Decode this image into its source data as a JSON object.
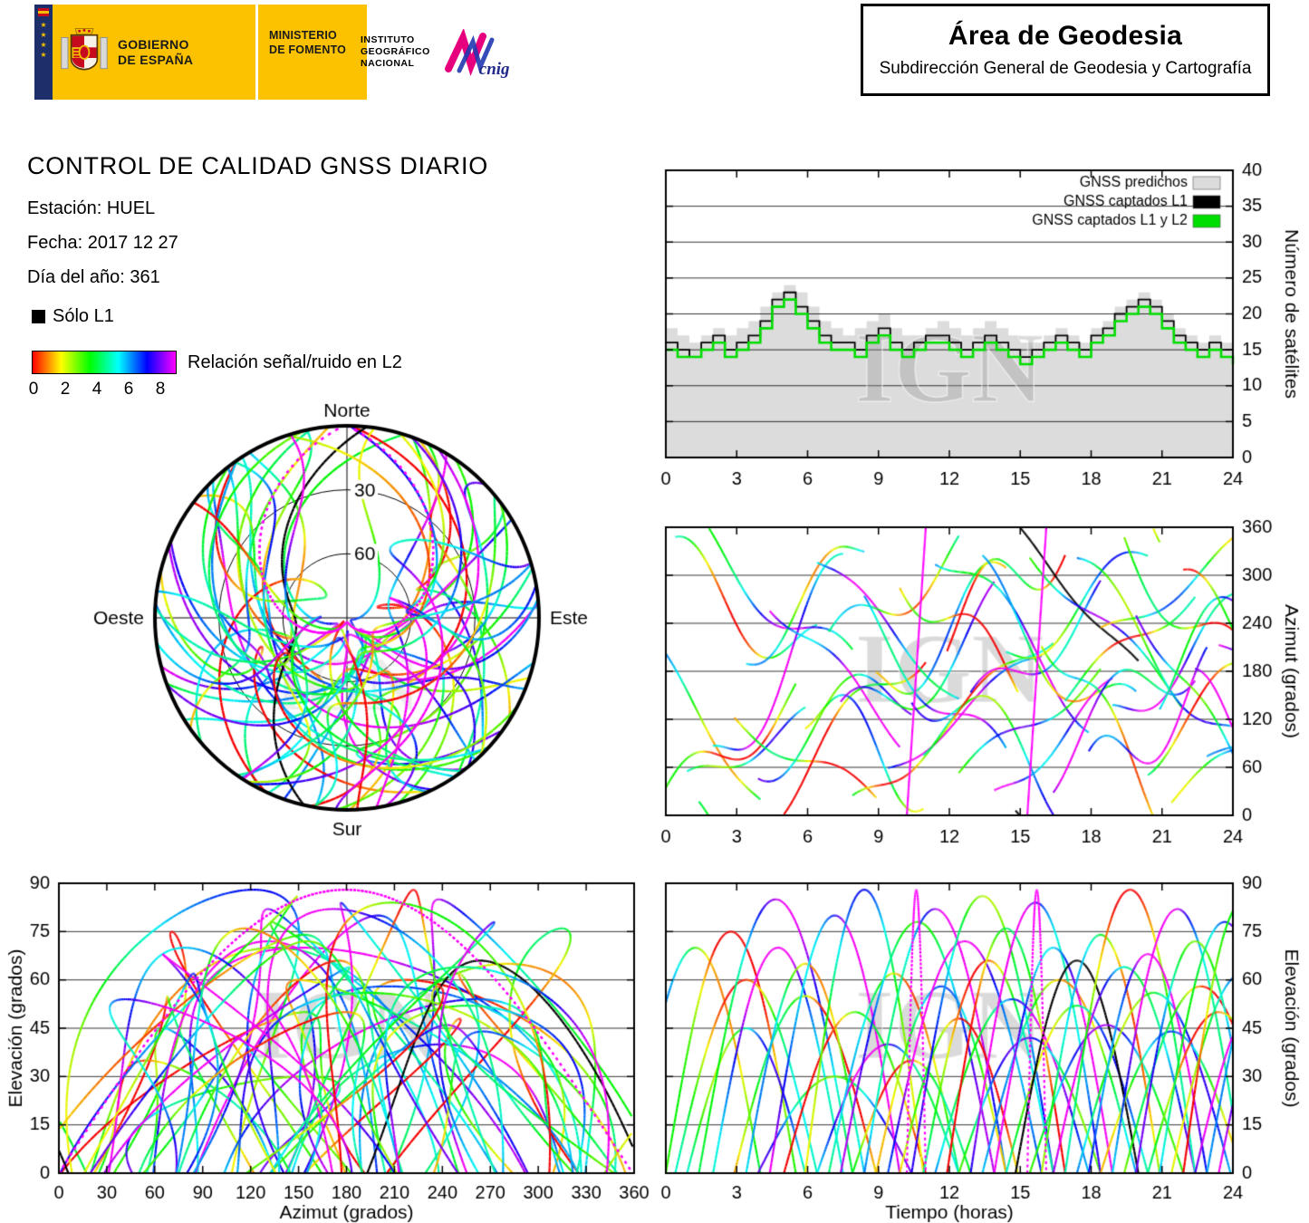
{
  "header": {
    "gov_line1": "GOBIERNO",
    "gov_line2": "DE ESPAÑA",
    "ministry_line1": "MINISTERIO",
    "ministry_line2": "DE FOMENTO",
    "ign_lines": [
      "INSTITUTO",
      "GEOGRÁFICO",
      "NACIONAL"
    ],
    "cnig_label": "cnig",
    "area_title": "Área de Geodesia",
    "area_subtitle": "Subdirección General de Geodesia y Cartografía"
  },
  "info": {
    "title": "CONTROL DE CALIDAD GNSS DIARIO",
    "station_label": "Estación: HUEL",
    "date_label": "Fecha: 2017 12 27",
    "doy_label": "Día del año: 361"
  },
  "legend": {
    "solo_l1": "Sólo L1",
    "colorbar_label": "Relación señal/ruido en L2",
    "colorbar_ticks": [
      "0",
      "2",
      "4",
      "6",
      "8"
    ],
    "colorbar_range": [
      0,
      9
    ]
  },
  "skyplot": {
    "north": "Norte",
    "south": "Sur",
    "east": "Este",
    "west": "Oeste",
    "ring30": "30",
    "ring60": "60"
  },
  "watermark": "IGN",
  "colors": {
    "header_yellow": "#fcc200",
    "navy": "#1c2f6b",
    "predicted_gray": "#dcdcdc",
    "captured_l1": "#000000",
    "captured_l1l2": "#00dd00",
    "magenta_dotted": "#ff00ff"
  },
  "chart_data": [
    {
      "id": "sat_count",
      "type": "area",
      "title": "",
      "xlabel": "",
      "ylabel": "Número de satélites",
      "xlim": [
        0,
        24
      ],
      "ylim": [
        0,
        40
      ],
      "x_ticks": [
        0,
        3,
        6,
        9,
        12,
        15,
        18,
        21,
        24
      ],
      "y_ticks": [
        0,
        5,
        10,
        15,
        20,
        25,
        30,
        35,
        40
      ],
      "grid": "horizontal",
      "legend_position": "top-right",
      "x_step": 0.5,
      "legend": [
        {
          "label": "GNSS predichos",
          "color": "#dcdcdc"
        },
        {
          "label": "GNSS captados L1",
          "color": "#000000"
        },
        {
          "label": "GNSS captados L1 y L2",
          "color": "#00dd00"
        }
      ],
      "series": [
        {
          "name": "GNSS predichos",
          "values": [
            18,
            17,
            16,
            17,
            18,
            17,
            18,
            19,
            21,
            23,
            24,
            23,
            21,
            19,
            18,
            17,
            18,
            19,
            20,
            18,
            17,
            17,
            18,
            19,
            18,
            17,
            18,
            19,
            18,
            17,
            16,
            16,
            17,
            18,
            17,
            16,
            18,
            19,
            21,
            22,
            23,
            22,
            20,
            18,
            17,
            16,
            17,
            16,
            16
          ]
        },
        {
          "name": "GNSS captados L1",
          "values": [
            16,
            15,
            14,
            16,
            17,
            15,
            16,
            17,
            19,
            22,
            23,
            21,
            19,
            17,
            16,
            16,
            15,
            17,
            18,
            16,
            15,
            16,
            17,
            17,
            16,
            15,
            16,
            17,
            16,
            15,
            14,
            15,
            16,
            17,
            16,
            15,
            17,
            18,
            20,
            21,
            22,
            21,
            19,
            17,
            16,
            15,
            16,
            15,
            14
          ]
        },
        {
          "name": "GNSS captados L1 y L2",
          "values": [
            15,
            14,
            14,
            15,
            16,
            14,
            15,
            16,
            18,
            21,
            22,
            20,
            18,
            16,
            15,
            15,
            14,
            16,
            17,
            15,
            14,
            15,
            16,
            16,
            15,
            14,
            15,
            16,
            15,
            14,
            13,
            14,
            15,
            16,
            15,
            14,
            16,
            17,
            19,
            20,
            21,
            20,
            18,
            16,
            15,
            14,
            15,
            14,
            13
          ]
        }
      ]
    },
    {
      "id": "azimut_time",
      "type": "line",
      "xlabel": "",
      "ylabel": "Azimut (grados)",
      "xlim": [
        0,
        24
      ],
      "ylim": [
        0,
        360
      ],
      "x_ticks": [
        0,
        3,
        6,
        9,
        12,
        15,
        18,
        21,
        24
      ],
      "y_ticks": [
        0,
        60,
        120,
        180,
        240,
        300,
        360
      ],
      "grid": "horizontal",
      "series_ref": "satellites",
      "color_encoding": "L2 signal/noise ratio (rainbow), black = L1 only"
    },
    {
      "id": "elev_azimut",
      "type": "line",
      "xlabel": "Azimut (grados)",
      "ylabel": "Elevación (grados)",
      "xlim": [
        0,
        360
      ],
      "ylim": [
        0,
        90
      ],
      "x_ticks": [
        0,
        30,
        60,
        90,
        120,
        150,
        180,
        210,
        240,
        270,
        300,
        330,
        360
      ],
      "y_ticks": [
        0,
        15,
        30,
        45,
        60,
        75,
        90
      ],
      "grid": "horizontal",
      "series_ref": "satellites",
      "color_encoding": "L2 signal/noise ratio (rainbow), black = L1 only"
    },
    {
      "id": "elev_time",
      "type": "line",
      "xlabel": "Tiempo (horas)",
      "ylabel": "Elevación (grados)",
      "xlim": [
        0,
        24
      ],
      "ylim": [
        0,
        90
      ],
      "x_ticks": [
        0,
        3,
        6,
        9,
        12,
        15,
        18,
        21,
        24
      ],
      "y_ticks": [
        0,
        15,
        30,
        45,
        60,
        75,
        90
      ],
      "grid": "horizontal",
      "series_ref": "satellites",
      "color_encoding": "L2 signal/noise ratio (rainbow), black = L1 only"
    },
    {
      "id": "skyplot",
      "type": "line",
      "projection": "polar",
      "elevation_rings": [
        30,
        60
      ],
      "cardinal_labels": [
        "Norte",
        "Este",
        "Sur",
        "Oeste"
      ],
      "series_ref": "satellites",
      "color_encoding": "L2 signal/noise ratio (rainbow), black = L1 only"
    }
  ],
  "satellites": [
    {
      "t0": -1.5,
      "dur": 5.5,
      "az0": 250,
      "az1": 20,
      "el": 70,
      "snr": 0.4,
      "ph": 0.0
    },
    {
      "t0": 0.0,
      "dur": 5.5,
      "az0": 20,
      "az1": 150,
      "el": 75,
      "snr": 0.1,
      "ph": 0.5
    },
    {
      "t0": 0.4,
      "dur": 6.0,
      "az0": 310,
      "az1": 200,
      "el": 60,
      "snr": 0.3,
      "ph": 1.0
    },
    {
      "t0": 0.9,
      "dur": 5.0,
      "az0": 40,
      "az1": 120,
      "el": 45,
      "snr": 0.55,
      "ph": 1.5
    },
    {
      "t0": 1.4,
      "dur": 6.5,
      "az0": 350,
      "az1": 180,
      "el": 85,
      "snr": 0.7,
      "ph": 2.0
    },
    {
      "t0": 2.0,
      "dur": 5.5,
      "az0": 60,
      "az1": 300,
      "el": 70,
      "snr": 0.85,
      "ph": 2.5
    },
    {
      "t0": 2.9,
      "dur": 6.0,
      "az0": 120,
      "az1": 20,
      "el": 55,
      "snr": 0.2,
      "ph": 3.0
    },
    {
      "t0": 3.4,
      "dur": 5.0,
      "az0": 200,
      "az1": 340,
      "el": 65,
      "snr": 0.4,
      "ph": 3.5
    },
    {
      "t0": 3.9,
      "dur": 6.5,
      "az0": 80,
      "az1": 160,
      "el": 30,
      "snr": 0.6,
      "ph": 4.0
    },
    {
      "t0": 4.4,
      "dur": 5.5,
      "az0": 270,
      "az1": 100,
      "el": 80,
      "snr": 0.9,
      "ph": 4.5
    },
    {
      "t0": 5.0,
      "dur": 6.0,
      "az0": 30,
      "az1": 220,
      "el": 50,
      "snr": 0.15,
      "ph": 5.0
    },
    {
      "t0": 5.9,
      "dur": 5.0,
      "az0": 140,
      "az1": 40,
      "el": 88,
      "snr": 0.5,
      "ph": 5.5
    },
    {
      "t0": 6.4,
      "dur": 6.0,
      "az0": 320,
      "az1": 150,
      "el": 40,
      "snr": 0.75,
      "ph": 6.0
    },
    {
      "t0": 6.9,
      "dur": 5.5,
      "az0": 210,
      "az1": 330,
      "el": 62,
      "snr": 0.35,
      "ph": 0.7
    },
    {
      "t0": 7.4,
      "dur": 6.5,
      "az0": 100,
      "az1": 250,
      "el": 78,
      "snr": 0.65,
      "ph": 1.2
    },
    {
      "t0": 7.9,
      "dur": 5.0,
      "az0": 10,
      "az1": 130,
      "el": 35,
      "snr": 0.25,
      "ph": 1.7
    },
    {
      "t0": 8.4,
      "dur": 6.0,
      "az0": 250,
      "az1": 60,
      "el": 82,
      "snr": 0.8,
      "ph": 2.2
    },
    {
      "t0": 8.9,
      "dur": 5.5,
      "az0": 160,
      "az1": 290,
      "el": 58,
      "snr": 0.45,
      "ph": 2.7
    },
    {
      "t0": 9.4,
      "dur": 6.5,
      "az0": 60,
      "az1": 200,
      "el": 72,
      "snr": 0.95,
      "ph": 3.2
    },
    {
      "t0": 9.9,
      "dur": 5.0,
      "az0": 300,
      "az1": 170,
      "el": 48,
      "snr": 0.1,
      "ph": 3.7
    },
    {
      "t0": 10.4,
      "dur": 6.0,
      "az0": 180,
      "az1": 40,
      "el": 86,
      "snr": 0.55,
      "ph": 4.2
    },
    {
      "t0": 10.9,
      "dur": 5.5,
      "az0": 90,
      "az1": 230,
      "el": 66,
      "snr": 0.3,
      "ph": 4.7
    },
    {
      "t0": 11.4,
      "dur": 6.5,
      "az0": 340,
      "az1": 130,
      "el": 54,
      "snr": 0.7,
      "ph": 5.2
    },
    {
      "t0": 11.9,
      "dur": 5.0,
      "az0": 230,
      "az1": 350,
      "el": 76,
      "snr": 0.2,
      "ph": 5.7
    },
    {
      "t0": 12.4,
      "dur": 6.0,
      "az0": 50,
      "az1": 180,
      "el": 42,
      "snr": 0.6,
      "ph": 0.2
    },
    {
      "t0": 12.9,
      "dur": 5.5,
      "az0": 130,
      "az1": 270,
      "el": 84,
      "snr": 0.85,
      "ph": 0.9
    },
    {
      "t0": 13.4,
      "dur": 6.5,
      "az0": 280,
      "az1": 110,
      "el": 60,
      "snr": 0.4,
      "ph": 1.6
    },
    {
      "t0": 13.9,
      "dur": 5.0,
      "az0": 20,
      "az1": 160,
      "el": 70,
      "snr": 0.9,
      "ph": 2.3
    },
    {
      "t0": 14.4,
      "dur": 6.0,
      "az0": 200,
      "az1": 320,
      "el": 52,
      "snr": 0.5,
      "ph": 3.0
    },
    {
      "t0": 14.8,
      "dur": 5.2,
      "az0": 358,
      "az1": 185,
      "el": 66,
      "style": "black",
      "wig": 8
    },
    {
      "t0": 15.4,
      "dur": 6.5,
      "az0": 330,
      "az1": 140,
      "el": 46,
      "snr": 0.65,
      "ph": 3.7
    },
    {
      "t0": 15.9,
      "dur": 5.0,
      "az0": 240,
      "az1": 10,
      "el": 74,
      "snr": 0.35,
      "ph": 4.4
    },
    {
      "t0": 16.4,
      "dur": 6.0,
      "az0": 70,
      "az1": 210,
      "el": 64,
      "snr": 0.75,
      "ph": 5.1
    },
    {
      "t0": 16.9,
      "dur": 5.5,
      "az0": 150,
      "az1": 280,
      "el": 88,
      "snr": 0.25,
      "ph": 5.8
    },
    {
      "t0": 17.4,
      "dur": 6.5,
      "az0": 310,
      "az1": 100,
      "el": 56,
      "snr": 0.55,
      "ph": 0.4
    },
    {
      "t0": 17.9,
      "dur": 5.0,
      "az0": 40,
      "az1": 170,
      "el": 68,
      "snr": 0.95,
      "ph": 1.1
    },
    {
      "t0": 18.4,
      "dur": 6.0,
      "az0": 220,
      "az1": 340,
      "el": 44,
      "snr": 0.45,
      "ph": 1.8
    },
    {
      "t0": 18.9,
      "dur": 5.5,
      "az0": 120,
      "az1": 260,
      "el": 82,
      "snr": 0.8,
      "ph": 2.5
    },
    {
      "t0": 19.4,
      "dur": 6.5,
      "az0": 350,
      "az1": 120,
      "el": 58,
      "snr": 0.2,
      "ph": 3.2
    },
    {
      "t0": 19.9,
      "dur": 5.0,
      "az0": 260,
      "az1": 30,
      "el": 72,
      "snr": 0.6,
      "ph": 3.9
    },
    {
      "t0": 20.4,
      "dur": 6.0,
      "az0": 80,
      "az1": 220,
      "el": 50,
      "snr": 0.3,
      "ph": 4.6
    },
    {
      "t0": 20.9,
      "dur": 5.5,
      "az0": 170,
      "az1": 300,
      "el": 78,
      "snr": 0.7,
      "ph": 5.3
    },
    {
      "t0": 21.4,
      "dur": 6.0,
      "az0": 20,
      "az1": 140,
      "el": 62,
      "snr": 0.5,
      "ph": 6.0
    },
    {
      "t0": 21.9,
      "dur": 5.0,
      "az0": 290,
      "az1": 160,
      "el": 84,
      "snr": 0.1,
      "ph": 0.6
    },
    {
      "t0": 22.4,
      "dur": 5.5,
      "az0": 140,
      "az1": 30,
      "el": 54,
      "snr": 0.85,
      "ph": 1.3
    },
    {
      "t0": 22.9,
      "dur": 6.0,
      "az0": 60,
      "az1": 200,
      "el": 76,
      "snr": 0.4,
      "ph": 2.0
    },
    {
      "t0": 23.4,
      "dur": 5.5,
      "az0": 200,
      "az1": 330,
      "el": 64,
      "snr": 0.75,
      "ph": 2.7
    },
    {
      "t0": 10.2,
      "dur": 0.8,
      "az0": 0,
      "az1": 359,
      "el": 88,
      "style": "dotmag",
      "wig": 0
    },
    {
      "t0": 15.3,
      "dur": 0.8,
      "az0": 0,
      "az1": 359,
      "el": 88,
      "style": "dotmag",
      "wig": 0
    }
  ]
}
